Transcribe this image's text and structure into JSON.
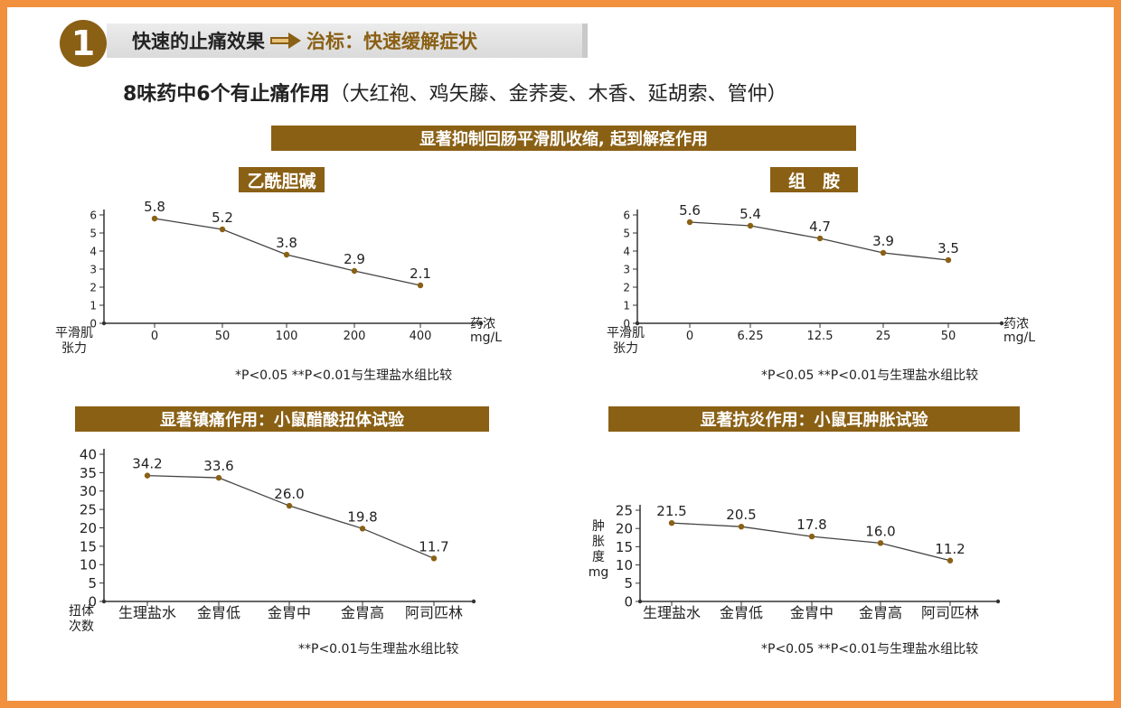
{
  "header": {
    "number": "1",
    "title_left": "快速的止痛效果",
    "title_right": "治标：快速缓解症状",
    "arrow_icon": "right-arrow-icon"
  },
  "subtitle": {
    "bold": "8味药中6个有止痛作用",
    "rest": "（大红袍、鸡矢藤、金荞麦、木香、延胡索、管仲）"
  },
  "banners": {
    "spasm": "显著抑制回肠平滑肌收缩, 起到解痉作用",
    "analgesic": "显著镇痛作用：小鼠醋酸扭体试验",
    "antiinflammatory": "显著抗炎作用：小鼠耳肿胀试验"
  },
  "colors": {
    "brand": "#8a6015",
    "border": "#f2913d",
    "point": "#8a6015",
    "line": "#444444"
  },
  "chart_data": [
    {
      "type": "line",
      "title": "乙酰胆碱",
      "ylabel": "平滑肌\n张力",
      "xlabel": "药浓\nmg/L",
      "categories": [
        "0",
        "50",
        "100",
        "200",
        "400"
      ],
      "values": [
        5.8,
        5.2,
        3.8,
        2.9,
        2.1
      ],
      "value_labels": [
        "5.8",
        "5.2",
        "3.8",
        "2.9",
        "2.1"
      ],
      "yticks": [
        "0",
        "1",
        "2",
        "3",
        "4",
        "5",
        "6"
      ],
      "ylim": [
        0,
        6
      ],
      "note": "*P<0.05 **P<0.01与生理盐水组比较"
    },
    {
      "type": "line",
      "title": "组　胺",
      "ylabel": "平滑肌\n张力",
      "xlabel": "药浓\nmg/L",
      "categories": [
        "0",
        "6.25",
        "12.5",
        "25",
        "50"
      ],
      "values": [
        5.6,
        5.4,
        4.7,
        3.9,
        3.5
      ],
      "value_labels": [
        "5.6",
        "5.4",
        "4.7",
        "3.9",
        "3.5"
      ],
      "yticks": [
        "0",
        "1",
        "2",
        "3",
        "4",
        "5",
        "6"
      ],
      "ylim": [
        0,
        6
      ],
      "note": "*P<0.05 **P<0.01与生理盐水组比较"
    },
    {
      "type": "line",
      "ylabel": "扭体\n次数",
      "categories": [
        "生理盐水",
        "金胃低",
        "金胃中",
        "金胃高",
        "阿司匹林"
      ],
      "values": [
        34.2,
        33.6,
        26.0,
        19.8,
        11.7
      ],
      "value_labels": [
        "34.2",
        "33.6",
        "26.0",
        "19.8",
        "11.7"
      ],
      "yticks": [
        "0",
        "5",
        "10",
        "15",
        "20",
        "25",
        "30",
        "35",
        "40"
      ],
      "ylim": [
        0,
        40
      ],
      "note": "**P<0.01与生理盐水组比较"
    },
    {
      "type": "line",
      "ylabel": "肿\n胀\n度\nmg",
      "categories": [
        "生理盐水",
        "金胃低",
        "金胃中",
        "金胃高",
        "阿司匹林"
      ],
      "values": [
        21.5,
        20.5,
        17.8,
        16.0,
        11.2
      ],
      "value_labels": [
        "21.5",
        "20.5",
        "17.8",
        "16.0",
        "11.2"
      ],
      "yticks": [
        "0",
        "5",
        "10",
        "15",
        "20",
        "25"
      ],
      "ylim": [
        0,
        25
      ],
      "note": "*P<0.05 **P<0.01与生理盐水组比较"
    }
  ]
}
